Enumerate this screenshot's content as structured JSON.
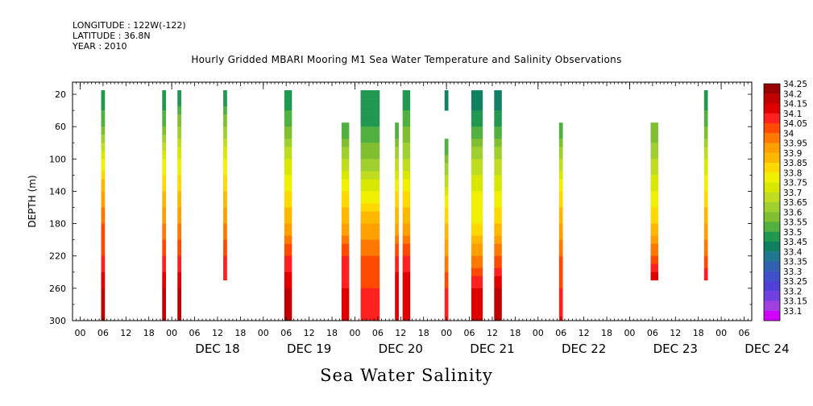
{
  "header": {
    "longitude": "LONGITUDE : 122W(-122)",
    "latitude": "LATITUDE : 36.8N",
    "year": "YEAR : 2010"
  },
  "chart_data": {
    "type": "heatmap",
    "title": "Hourly Gridded MBARI Mooring M1 Sea Water Temperature and Salinity Observations",
    "bottom_title": "Sea Water Salinity",
    "ylabel": "DEPTH (m)",
    "xlabel": "",
    "x_unit": "hours since Dec 17 00:00, 2010",
    "xlim": [
      -2,
      176
    ],
    "ylim": [
      300,
      5
    ],
    "y_ticks": [
      20,
      60,
      100,
      140,
      180,
      220,
      260,
      300
    ],
    "x_hour_ticks": [
      "00",
      "06",
      "12",
      "18"
    ],
    "day_labels": [
      "DEC 18",
      "DEC 19",
      "DEC 20",
      "DEC 21",
      "DEC 22",
      "DEC 23",
      "DEC 24"
    ],
    "colorbar": {
      "levels": [
        "34.25",
        "34.2",
        "34.15",
        "34.1",
        "34.05",
        "34",
        "33.95",
        "33.9",
        "33.85",
        "33.8",
        "33.75",
        "33.7",
        "33.65",
        "33.6",
        "33.55",
        "33.5",
        "33.45",
        "33.4",
        "33.35",
        "33.3",
        "33.25",
        "33.2",
        "33.15",
        "33.1"
      ],
      "colors": [
        "#990000",
        "#c00000",
        "#e00000",
        "#ff2020",
        "#ff4a00",
        "#ff7800",
        "#ffa000",
        "#ffb800",
        "#ffd800",
        "#f0f000",
        "#d8e800",
        "#c0dc20",
        "#a0d030",
        "#80c030",
        "#50b040",
        "#209850",
        "#108060",
        "#207890",
        "#3060b0",
        "#4050c8",
        "#5040d8",
        "#7040e0",
        "#a040e0",
        "#d000ff"
      ]
    },
    "columns": [
      {
        "t": 6,
        "w": 1,
        "top": 20,
        "bottom": 300,
        "profile": [
          [
            20,
            33.5
          ],
          [
            60,
            33.6
          ],
          [
            100,
            33.8
          ],
          [
            140,
            33.95
          ],
          [
            180,
            34.05
          ],
          [
            220,
            34.1
          ],
          [
            260,
            34.2
          ],
          [
            300,
            34.2
          ]
        ]
      },
      {
        "t": 22,
        "w": 1,
        "top": 20,
        "bottom": 300,
        "profile": [
          [
            20,
            33.5
          ],
          [
            60,
            33.6
          ],
          [
            100,
            33.8
          ],
          [
            140,
            33.9
          ],
          [
            180,
            34.0
          ],
          [
            220,
            34.1
          ],
          [
            260,
            34.2
          ],
          [
            300,
            34.2
          ]
        ]
      },
      {
        "t": 26,
        "w": 1,
        "top": 20,
        "bottom": 300,
        "profile": [
          [
            20,
            33.5
          ],
          [
            60,
            33.65
          ],
          [
            100,
            33.8
          ],
          [
            140,
            33.9
          ],
          [
            180,
            34.0
          ],
          [
            220,
            34.1
          ],
          [
            260,
            34.2
          ],
          [
            300,
            34.2
          ]
        ]
      },
      {
        "t": 38,
        "w": 1,
        "top": 20,
        "bottom": 250,
        "profile": [
          [
            20,
            33.5
          ],
          [
            60,
            33.65
          ],
          [
            100,
            33.8
          ],
          [
            140,
            33.9
          ],
          [
            180,
            34.0
          ],
          [
            220,
            34.1
          ],
          [
            250,
            34.15
          ]
        ]
      },
      {
        "t": 54,
        "w": 2,
        "top": 20,
        "bottom": 300,
        "profile": [
          [
            20,
            33.5
          ],
          [
            60,
            33.6
          ],
          [
            100,
            33.75
          ],
          [
            140,
            33.85
          ],
          [
            180,
            33.95
          ],
          [
            220,
            34.1
          ],
          [
            260,
            34.2
          ],
          [
            300,
            34.2
          ]
        ]
      },
      {
        "t": 69,
        "w": 2,
        "top": 60,
        "bottom": 300,
        "profile": [
          [
            60,
            33.55
          ],
          [
            100,
            33.7
          ],
          [
            140,
            33.85
          ],
          [
            180,
            33.95
          ],
          [
            220,
            34.1
          ],
          [
            260,
            34.15
          ],
          [
            300,
            34.15
          ]
        ]
      },
      {
        "t": 74,
        "w": 5,
        "top": 20,
        "bottom": 300,
        "profile": [
          [
            20,
            33.5
          ],
          [
            60,
            33.55
          ],
          [
            100,
            33.65
          ],
          [
            140,
            33.8
          ],
          [
            180,
            33.95
          ],
          [
            220,
            34.05
          ],
          [
            260,
            34.1
          ],
          [
            300,
            34.1
          ]
        ]
      },
      {
        "t": 83,
        "w": 1,
        "top": 60,
        "bottom": 300,
        "profile": [
          [
            60,
            33.55
          ],
          [
            100,
            33.7
          ],
          [
            140,
            33.85
          ],
          [
            180,
            33.95
          ],
          [
            220,
            34.1
          ],
          [
            260,
            34.2
          ],
          [
            300,
            34.15
          ]
        ]
      },
      {
        "t": 85,
        "w": 2,
        "top": 20,
        "bottom": 300,
        "profile": [
          [
            20,
            33.5
          ],
          [
            60,
            33.6
          ],
          [
            100,
            33.7
          ],
          [
            140,
            33.85
          ],
          [
            180,
            33.95
          ],
          [
            220,
            34.1
          ],
          [
            260,
            34.2
          ],
          [
            300,
            34.15
          ]
        ]
      },
      {
        "t": 96,
        "w": 1,
        "top": 20,
        "bottom": 40,
        "profile": [
          [
            20,
            33.45
          ],
          [
            40,
            33.45
          ]
        ]
      },
      {
        "t": 96,
        "w": 1,
        "top": 80,
        "bottom": 300,
        "profile": [
          [
            80,
            33.55
          ],
          [
            120,
            33.7
          ],
          [
            160,
            33.85
          ],
          [
            200,
            33.95
          ],
          [
            240,
            34.05
          ],
          [
            260,
            34.1
          ],
          [
            300,
            34.1
          ]
        ]
      },
      {
        "t": 103,
        "w": 3,
        "top": 20,
        "bottom": 300,
        "profile": [
          [
            20,
            33.45
          ],
          [
            60,
            33.55
          ],
          [
            100,
            33.7
          ],
          [
            140,
            33.8
          ],
          [
            180,
            33.85
          ],
          [
            220,
            34.0
          ],
          [
            260,
            34.15
          ],
          [
            300,
            34.15
          ]
        ]
      },
      {
        "t": 109,
        "w": 2,
        "top": 20,
        "bottom": 300,
        "profile": [
          [
            20,
            33.45
          ],
          [
            60,
            33.55
          ],
          [
            100,
            33.7
          ],
          [
            140,
            33.8
          ],
          [
            180,
            33.9
          ],
          [
            220,
            34.05
          ],
          [
            260,
            34.2
          ],
          [
            300,
            34.2
          ]
        ]
      },
      {
        "t": 126,
        "w": 1,
        "top": 60,
        "bottom": 300,
        "profile": [
          [
            60,
            33.55
          ],
          [
            100,
            33.7
          ],
          [
            140,
            33.85
          ],
          [
            180,
            33.95
          ],
          [
            220,
            34.05
          ],
          [
            260,
            34.1
          ],
          [
            300,
            34.1
          ]
        ]
      },
      {
        "t": 150,
        "w": 2,
        "top": 60,
        "bottom": 250,
        "profile": [
          [
            60,
            33.6
          ],
          [
            100,
            33.7
          ],
          [
            140,
            33.8
          ],
          [
            180,
            33.9
          ],
          [
            220,
            34.05
          ],
          [
            250,
            34.2
          ]
        ]
      },
      {
        "t": 164,
        "w": 1,
        "top": 20,
        "bottom": 250,
        "profile": [
          [
            20,
            33.5
          ],
          [
            60,
            33.6
          ],
          [
            100,
            33.75
          ],
          [
            140,
            33.85
          ],
          [
            180,
            33.95
          ],
          [
            220,
            34.05
          ],
          [
            250,
            34.15
          ]
        ]
      }
    ]
  }
}
